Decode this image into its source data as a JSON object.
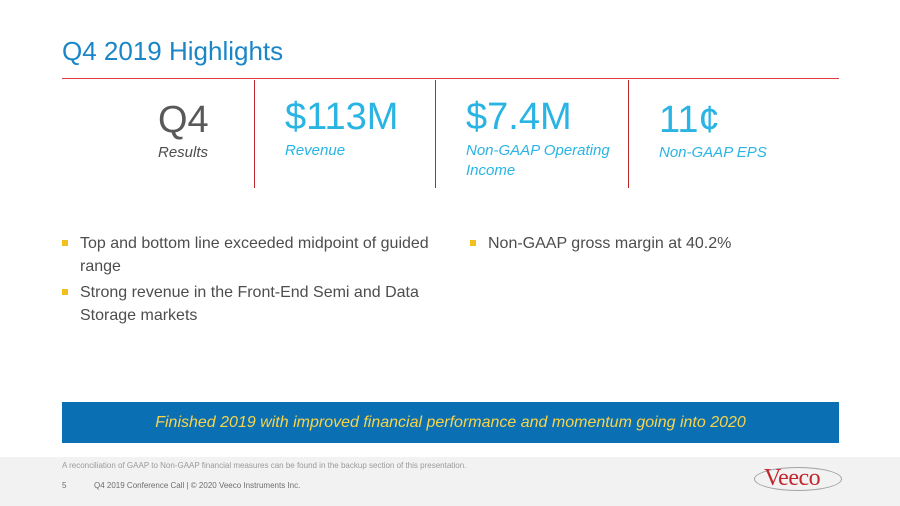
{
  "title": "Q4 2019 Highlights",
  "colors": {
    "title": "#1a86c8",
    "accent_rule": "#e03a3e",
    "metric_value": "#29b4e3",
    "bullet_marker": "#f2c01e",
    "banner_bg": "#0b6fb4",
    "banner_text": "#f7d44a",
    "logo_text": "#c0272d"
  },
  "metrics": [
    {
      "value": "Q4",
      "label": "Results"
    },
    {
      "value": "$113M",
      "label": "Revenue"
    },
    {
      "value": "$7.4M",
      "label": "Non-GAAP Operating Income"
    },
    {
      "value": "11¢",
      "label": "Non-GAAP EPS"
    }
  ],
  "bullets_left": [
    "Top and bottom line exceeded midpoint of guided range",
    "Strong revenue in the Front-End Semi and Data Storage markets"
  ],
  "bullets_right": [
    "Non-GAAP gross margin at 40.2%"
  ],
  "banner": "Finished 2019 with improved financial performance and momentum going into 2020",
  "footer": {
    "footnote": "A reconciliation of GAAP to Non-GAAP financial measures can be found in the backup section of this presentation.",
    "page_number": "5",
    "conference": "Q4 2019 Conference Call  |  © 2020  Veeco Instruments Inc."
  },
  "logo": {
    "text": "Veeco"
  }
}
